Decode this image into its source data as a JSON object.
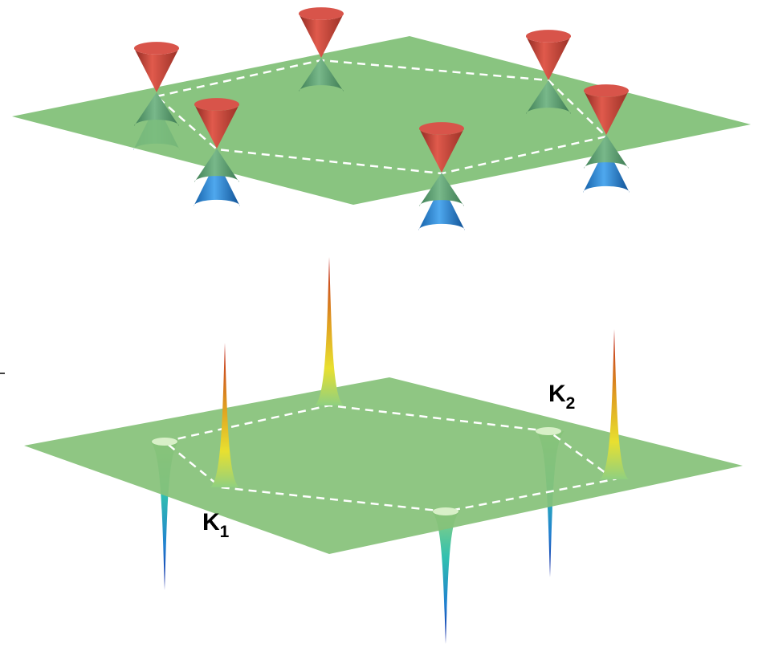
{
  "labels": [
    {
      "main": "K",
      "sub": "1"
    },
    {
      "main": "K",
      "sub": "2"
    }
  ]
}
